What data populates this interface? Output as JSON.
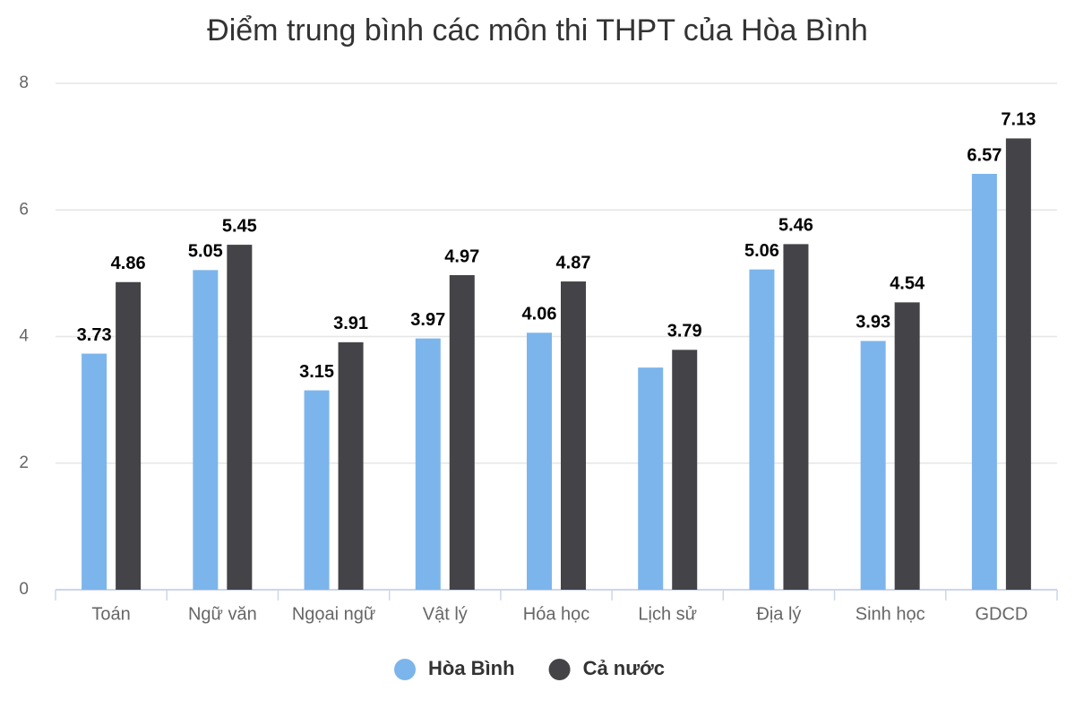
{
  "chart_data": {
    "type": "bar",
    "title": "Điểm trung bình các môn thi THPT của Hòa Bình",
    "categories": [
      "Toán",
      "Ngữ văn",
      "Ngọai ngữ",
      "Vật lý",
      "Hóa học",
      "Lịch sử",
      "Địa lý",
      "Sinh học",
      "GDCD"
    ],
    "series": [
      {
        "name": "Hòa Bình",
        "color": "#7cb5ec",
        "values": [
          3.73,
          5.05,
          3.15,
          3.97,
          4.06,
          3.51,
          5.06,
          3.93,
          6.57
        ],
        "value_labels": [
          "3.73",
          "5.05",
          "3.15",
          "3.97",
          "4.06",
          null,
          "5.06",
          "3.93",
          "6.57"
        ]
      },
      {
        "name": "Cả nước",
        "color": "#434348",
        "values": [
          4.86,
          5.45,
          3.91,
          4.97,
          4.87,
          3.79,
          5.46,
          4.54,
          7.13
        ]
      }
    ],
    "ylim": [
      0,
      8
    ],
    "yticks": [
      0,
      2,
      4,
      6,
      8
    ],
    "grid": true,
    "legend": "bottom"
  }
}
